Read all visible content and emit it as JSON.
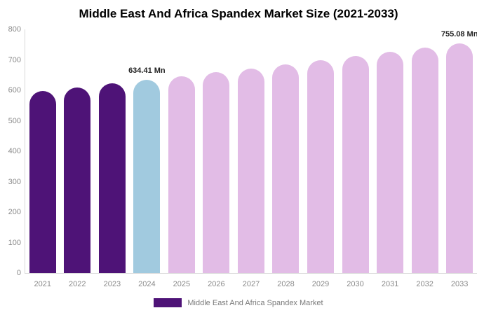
{
  "title": "Middle East And Africa Spandex Market Size (2021-2033)",
  "legend": {
    "label": "Middle East And Africa Spandex Market"
  },
  "colors": {
    "historical_bar": "#4E1377",
    "base_year_bar": "#A1CADF",
    "forecast_bar": "#E2BCE6",
    "axis_text": "#8a8a8a",
    "annotation_text": "#222222",
    "axis_line": "#d9d9d9",
    "title_text": "#000000",
    "legend_text": "#7a7a7a"
  },
  "chart_data": {
    "type": "bar",
    "title": "Middle East And Africa Spandex Market Size (2021-2033)",
    "categories": [
      "2021",
      "2022",
      "2023",
      "2024",
      "2025",
      "2026",
      "2027",
      "2028",
      "2029",
      "2030",
      "2031",
      "2032",
      "2033"
    ],
    "values": [
      598.4,
      610.3,
      622.2,
      634.41,
      646.8,
      659.4,
      672.3,
      685.4,
      698.8,
      712.4,
      726.3,
      740.5,
      755.08
    ],
    "bar_roles": [
      "historical",
      "historical",
      "historical",
      "base_year",
      "forecast",
      "forecast",
      "forecast",
      "forecast",
      "forecast",
      "forecast",
      "forecast",
      "forecast",
      "forecast"
    ],
    "annotations": [
      {
        "category": "2024",
        "index": 3,
        "text": "634.41 Mn"
      },
      {
        "category": "2033",
        "index": 12,
        "text": "755.08 Mn"
      }
    ],
    "unit": "Mn",
    "xlabel": "",
    "ylabel": "",
    "ylim": [
      0,
      800
    ],
    "yticks": [
      0,
      100,
      200,
      300,
      400,
      500,
      600,
      700,
      800
    ],
    "grid": false,
    "legend_position": "bottom-center",
    "legend_entries": [
      "Middle East And Africa Spandex Market"
    ]
  }
}
